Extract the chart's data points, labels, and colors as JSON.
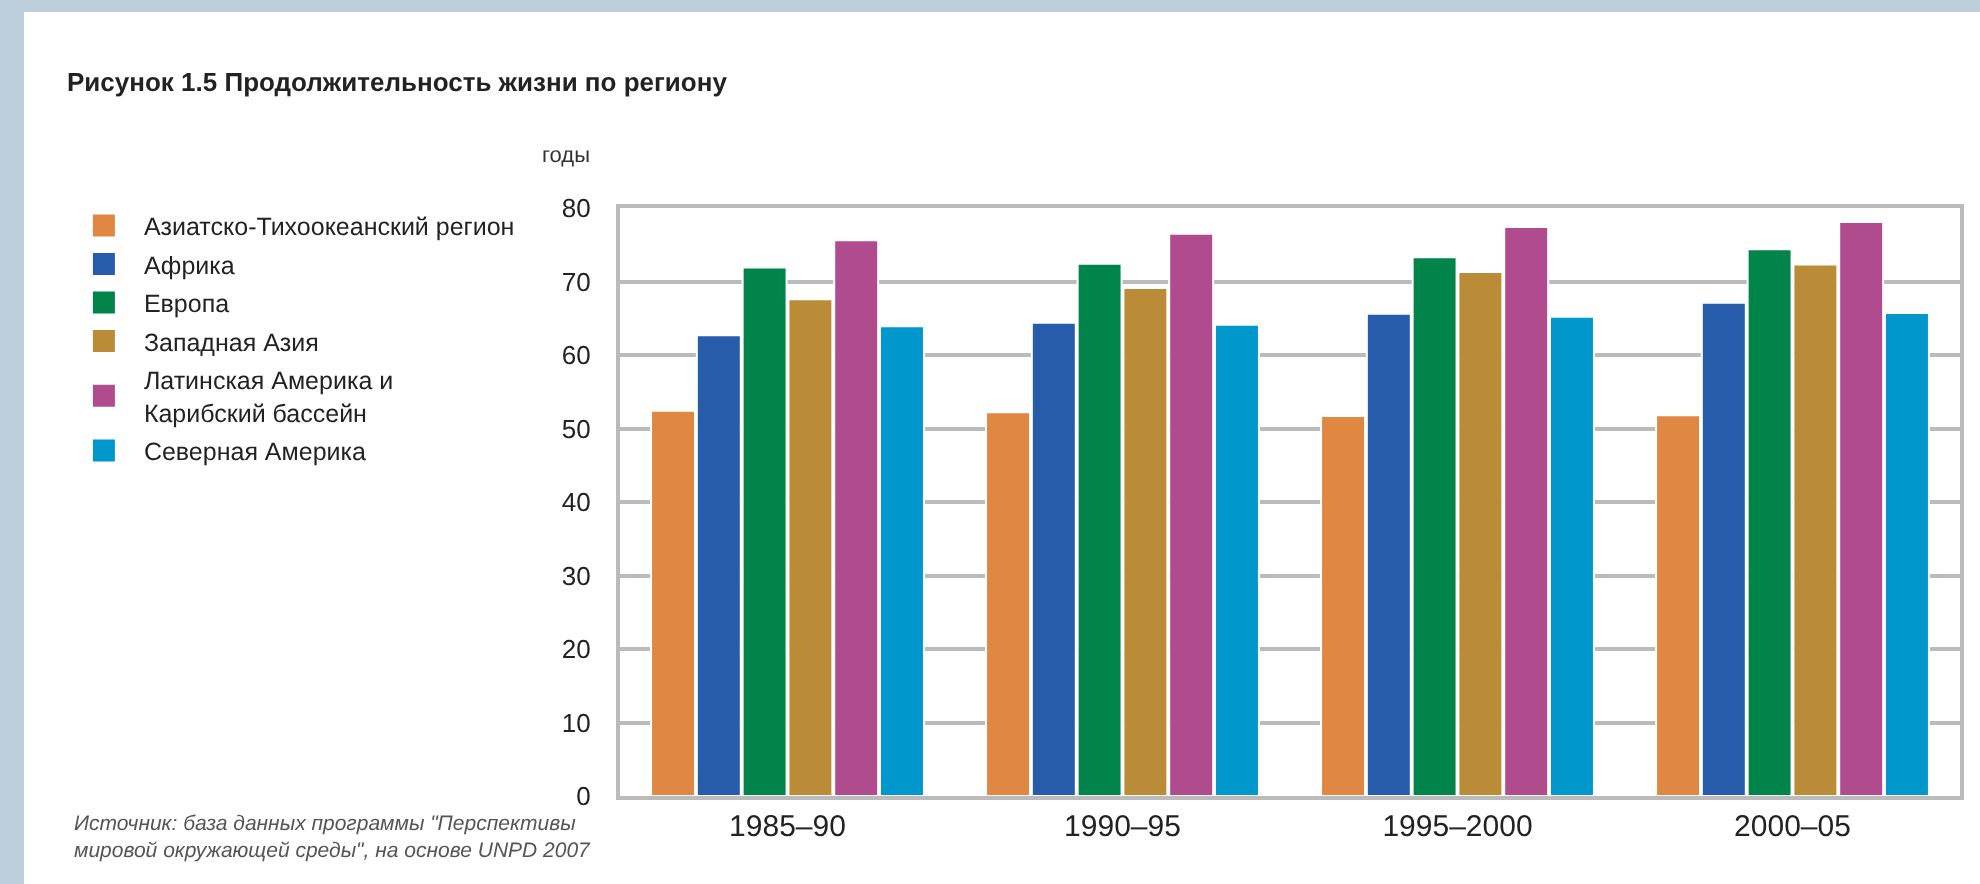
{
  "chart_data": {
    "type": "bar",
    "title": "Рисунок 1.5 Продолжительность жизни по региону",
    "ylabel": "годы",
    "categories": [
      "1985–90",
      "1990–95",
      "1995–2000",
      "2000–05"
    ],
    "series": [
      {
        "name": "Азиатско-Тихоокеанский регион",
        "color": "#e08842",
        "values": [
          52.4,
          52.2,
          51.7,
          51.8
        ]
      },
      {
        "name": "Африка",
        "color": "#265caa",
        "values": [
          62.7,
          64.4,
          65.6,
          67.1
        ]
      },
      {
        "name": "Европа",
        "color": "#00844a",
        "values": [
          71.9,
          72.4,
          73.3,
          74.4
        ]
      },
      {
        "name": "Западная Азия",
        "color": "#bb8c37",
        "values": [
          67.6,
          69.1,
          71.3,
          72.3
        ]
      },
      {
        "name": "Латинская Америка и Карибский бассейн",
        "color": "#b04c8e",
        "values": [
          75.6,
          76.5,
          77.4,
          78.1
        ]
      },
      {
        "name": "Северная Америка",
        "color": "#0098cc",
        "values": [
          63.9,
          64.1,
          65.2,
          65.7
        ]
      }
    ],
    "ylim": [
      0,
      80
    ],
    "yticks": [
      0,
      10,
      20,
      30,
      40,
      50,
      60,
      70,
      80
    ],
    "grid": "y",
    "legend": "left",
    "annotations": [
      "Источник: база данных программы \"Перспективы мировой окружающей среды\", на основе UNPD 2007"
    ]
  }
}
